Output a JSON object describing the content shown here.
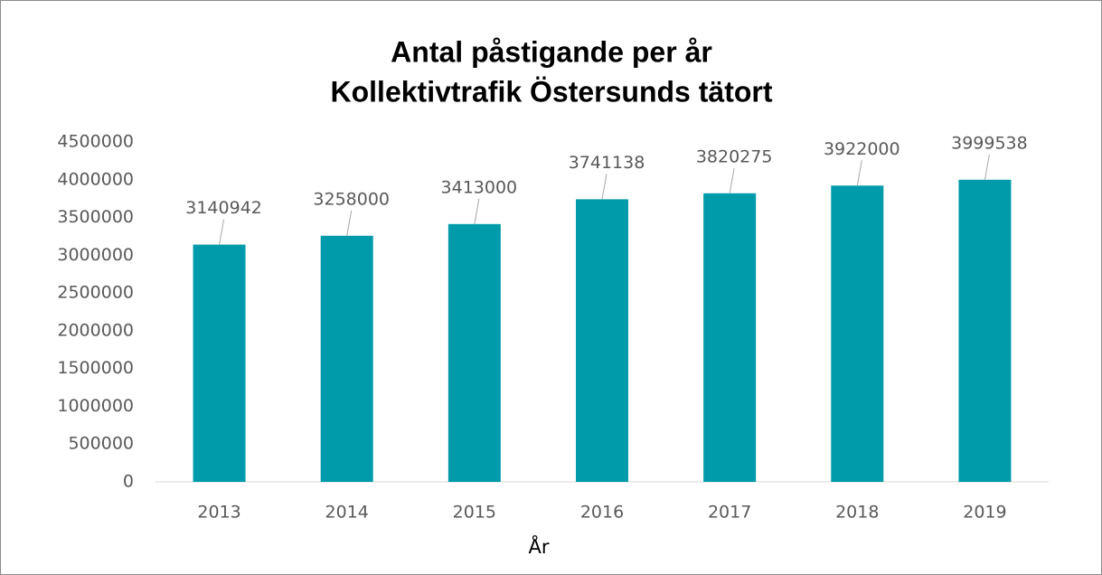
{
  "chart_data": {
    "type": "bar",
    "title": [
      "Antal påstigande per år",
      "Kollektivtrafik Östersunds tätort"
    ],
    "x_label": "År",
    "categories": [
      "2013",
      "2014",
      "2015",
      "2016",
      "2017",
      "2018",
      "2019"
    ],
    "values": [
      3140942,
      3258000,
      3413000,
      3741138,
      3820275,
      3922000,
      3999538
    ],
    "color": "#009baa",
    "ylim": [
      0,
      4500000
    ],
    "yticks": [
      0,
      500000,
      1000000,
      1500000,
      2000000,
      2500000,
      3000000,
      3500000,
      4000000,
      4500000
    ],
    "grid": false
  }
}
